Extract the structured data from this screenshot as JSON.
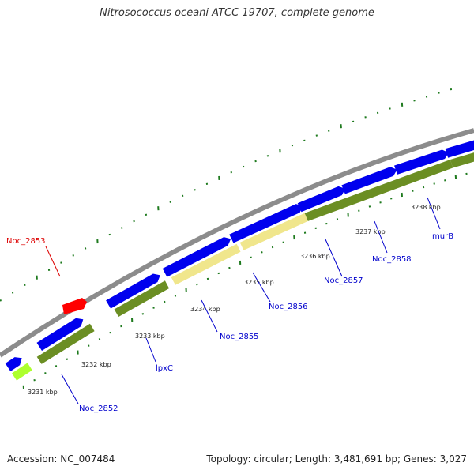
{
  "title": "Nitrosococcus oceani ATCC 19707, complete genome",
  "footer": {
    "accession": "Accession: NC_007484",
    "summary": "Topology: circular; Length: 3,481,691 bp; Genes: 3,027"
  },
  "colors": {
    "forward_cds": "#0000ee",
    "reverse_cds_olive": "#6b8e23",
    "reverse_cds_khaki": "#f0e68c",
    "reverse_cds_lime": "#adff2f",
    "highlight_gene": "#ff0000",
    "backbone": "#8c8c8c",
    "ticks": "#1e7a1e",
    "label_blue": "#0000cc",
    "label_red": "#dd0000"
  },
  "ruler": [
    {
      "label": "3231 kbp"
    },
    {
      "label": "3232 kbp"
    },
    {
      "label": "3233 kbp"
    },
    {
      "label": "3234 kbp"
    },
    {
      "label": "3235 kbp"
    },
    {
      "label": "3236 kbp"
    },
    {
      "label": "3237 kbp"
    },
    {
      "label": "3238 kbp"
    }
  ],
  "gene_labels": [
    {
      "name": "Noc_2853",
      "color": "red"
    },
    {
      "name": "Noc_2852",
      "color": "blue"
    },
    {
      "name": "lpxC",
      "color": "blue"
    },
    {
      "name": "Noc_2855",
      "color": "blue"
    },
    {
      "name": "Noc_2856",
      "color": "blue"
    },
    {
      "name": "Noc_2857",
      "color": "blue"
    },
    {
      "name": "Noc_2858",
      "color": "blue"
    },
    {
      "name": "murB",
      "color": "blue"
    }
  ]
}
